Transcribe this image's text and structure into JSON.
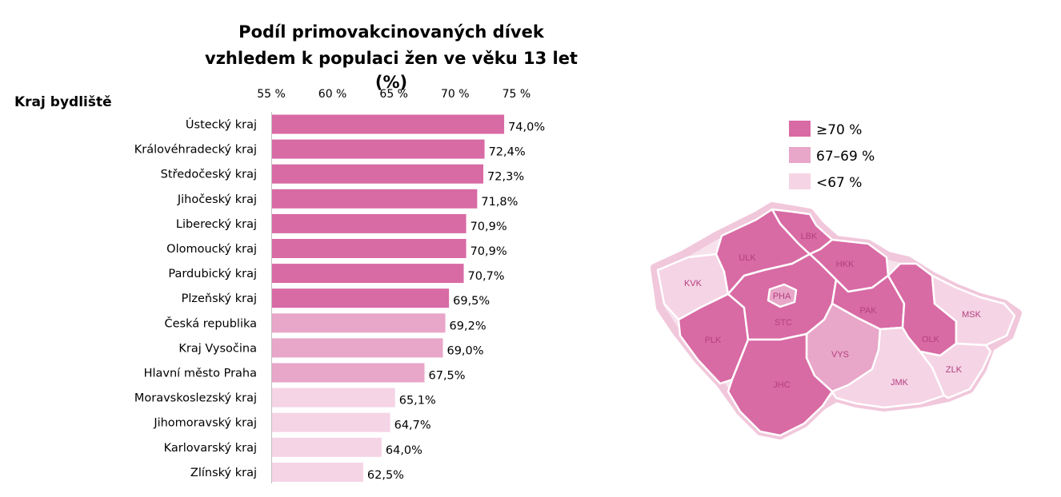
{
  "chart_data": {
    "type": "bar",
    "orientation": "horizontal",
    "title": [
      "Podíl primovakcinovaných dívek",
      "vzhledem k populaci žen ve věku 13 let",
      "(%)"
    ],
    "ylabel": "Kraj bydliště",
    "xlim": [
      55,
      75
    ],
    "xticks": [
      "55 %",
      "60 %",
      "65 %",
      "70 %",
      "75 %"
    ],
    "categories": [
      "Ústecký kraj",
      "Královéhradecký kraj",
      "Středočeský kraj",
      "Jihočeský kraj",
      "Liberecký kraj",
      "Olomoucký kraj",
      "Pardubický kraj",
      "Plzeňský kraj",
      "Česká republika",
      "Kraj Vysočina",
      "Hlavní město Praha",
      "Moravskoslezský kraj",
      "Jihomoravský kraj",
      "Karlovarský kraj",
      "Zlínský kraj"
    ],
    "values": [
      74.0,
      72.4,
      72.3,
      71.8,
      70.9,
      70.9,
      70.7,
      69.5,
      69.2,
      69.0,
      67.5,
      65.1,
      64.7,
      64.0,
      62.5
    ],
    "value_labels": [
      "74,0%",
      "72,4%",
      "72,3%",
      "71,8%",
      "70,9%",
      "70,9%",
      "70,7%",
      "69,5%",
      "69,2%",
      "69,0%",
      "67,5%",
      "65,1%",
      "64,7%",
      "64,0%",
      "62,5%"
    ],
    "grid": false,
    "legend_placement": "top-right",
    "legend": [
      {
        "label": "≥70 %",
        "color": "#d86aa4"
      },
      {
        "label": "67–69 %",
        "color": "#e8a6c8"
      },
      {
        "label": "<67 %",
        "color": "#f5d4e5"
      }
    ]
  },
  "map": {
    "regions": [
      {
        "code": "KVK",
        "class": "low"
      },
      {
        "code": "ULK",
        "class": "high"
      },
      {
        "code": "LBK",
        "class": "high"
      },
      {
        "code": "HKK",
        "class": "high"
      },
      {
        "code": "PHA",
        "class": "mid"
      },
      {
        "code": "STC",
        "class": "high"
      },
      {
        "code": "PAK",
        "class": "high"
      },
      {
        "code": "PLK",
        "class": "high"
      },
      {
        "code": "VYS",
        "class": "mid"
      },
      {
        "code": "OLK",
        "class": "high"
      },
      {
        "code": "MSK",
        "class": "low"
      },
      {
        "code": "JHC",
        "class": "high"
      },
      {
        "code": "JMK",
        "class": "low"
      },
      {
        "code": "ZLK",
        "class": "low"
      }
    ]
  }
}
